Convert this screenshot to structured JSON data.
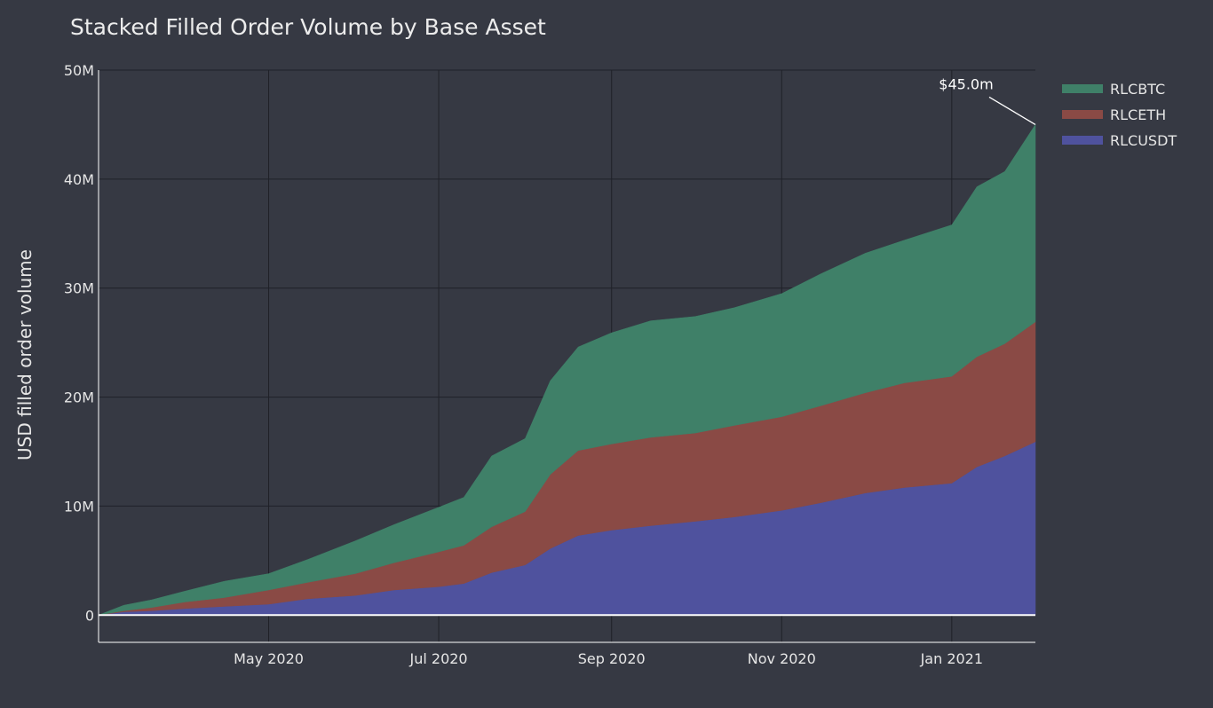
{
  "chart_data": {
    "type": "area",
    "stacked": true,
    "title": "Stacked Filled Order Volume by Base Asset",
    "xlabel": "",
    "ylabel": "USD filled order volume",
    "xlim": [
      "2020-03-01",
      "2021-01-31"
    ],
    "ylim": [
      -2.5,
      50
    ],
    "yticks": [
      0,
      10,
      20,
      30,
      40,
      50
    ],
    "ytick_labels": [
      "0",
      "10M",
      "20M",
      "30M",
      "40M",
      "50M"
    ],
    "xticks": [
      "2020-05-01",
      "2020-07-01",
      "2020-09-01",
      "2020-11-01",
      "2021-01-01"
    ],
    "xtick_labels": [
      "May 2020",
      "Jul 2020",
      "Sep 2020",
      "Nov 2020",
      "Jan 2021"
    ],
    "grid": true,
    "legend_position": "top-right",
    "units": "USD millions (cumulative)",
    "x": [
      "2020-03-01",
      "2020-03-10",
      "2020-03-20",
      "2020-04-01",
      "2020-04-15",
      "2020-05-01",
      "2020-05-15",
      "2020-06-01",
      "2020-06-15",
      "2020-07-01",
      "2020-07-10",
      "2020-07-20",
      "2020-08-01",
      "2020-08-10",
      "2020-08-20",
      "2020-09-01",
      "2020-09-15",
      "2020-10-01",
      "2020-10-15",
      "2020-11-01",
      "2020-11-15",
      "2020-12-01",
      "2020-12-15",
      "2021-01-01",
      "2021-01-10",
      "2021-01-20",
      "2021-01-31"
    ],
    "series": [
      {
        "name": "RLCUSDT",
        "color": "#4f529e",
        "values": [
          0,
          0.3,
          0.4,
          0.6,
          0.8,
          1.0,
          1.5,
          1.8,
          2.3,
          2.6,
          2.9,
          3.9,
          4.6,
          6.1,
          7.3,
          7.8,
          8.2,
          8.6,
          9.0,
          9.6,
          10.3,
          11.2,
          11.7,
          12.1,
          13.6,
          14.6,
          15.9
        ]
      },
      {
        "name": "RLCETH",
        "color": "#8a4a45",
        "values": [
          0,
          0.1,
          0.3,
          0.6,
          0.8,
          1.3,
          1.5,
          2.0,
          2.5,
          3.2,
          3.5,
          4.2,
          4.9,
          6.8,
          7.8,
          7.9,
          8.1,
          8.1,
          8.4,
          8.6,
          8.9,
          9.2,
          9.6,
          9.8,
          10.1,
          10.3,
          11.0
        ]
      },
      {
        "name": "RLCBTC",
        "color": "#3f8068",
        "values": [
          0,
          0.5,
          0.7,
          1.0,
          1.5,
          1.5,
          2.1,
          3.0,
          3.5,
          4.1,
          4.4,
          6.5,
          6.7,
          8.6,
          9.5,
          10.2,
          10.7,
          10.7,
          10.8,
          11.3,
          12.1,
          12.8,
          13.1,
          13.9,
          15.6,
          15.8,
          18.1
        ]
      }
    ],
    "annotations": [
      {
        "text": "$45.0m",
        "x": "2021-01-31",
        "y": 45.0
      }
    ]
  }
}
